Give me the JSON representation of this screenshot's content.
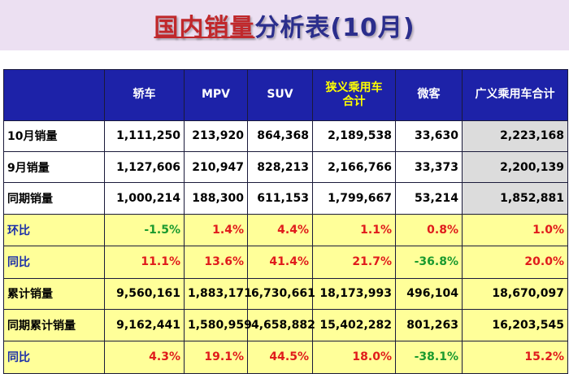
{
  "title": {
    "part1": "国内销量",
    "part2": "分析表(10月)"
  },
  "header": {
    "corner": "",
    "columns": [
      "轿车",
      "MPV",
      "SUV",
      "狭义乘用车合计",
      "微客",
      "广义乘用车合计"
    ]
  },
  "rows": [
    {
      "label": "10月销量",
      "values": [
        "1,111,250",
        "213,920",
        "864,368",
        "2,189,538",
        "33,630",
        "2,223,168"
      ]
    },
    {
      "label": "9月销量",
      "values": [
        "1,127,606",
        "210,947",
        "828,213",
        "2,166,766",
        "33,373",
        "2,200,139"
      ]
    },
    {
      "label": "同期销量",
      "values": [
        "1,000,214",
        "188,300",
        "611,153",
        "1,799,667",
        "53,214",
        "1,852,881"
      ]
    },
    {
      "label": "环比",
      "values": [
        "-1.5%",
        "1.4%",
        "4.4%",
        "1.1%",
        "0.8%",
        "1.0%"
      ]
    },
    {
      "label": "同比",
      "values": [
        "11.1%",
        "13.6%",
        "41.4%",
        "21.7%",
        "-36.8%",
        "20.0%"
      ]
    },
    {
      "label": "累计销量",
      "values": [
        "9,560,161",
        "1,883,171",
        "6,730,661",
        "18,173,993",
        "496,104",
        "18,670,097"
      ]
    },
    {
      "label": "同期累计销量",
      "values": [
        "9,162,441",
        "1,580,959",
        "4,658,882",
        "15,402,282",
        "801,263",
        "16,203,545"
      ]
    },
    {
      "label": "同比",
      "values": [
        "4.3%",
        "19.1%",
        "44.5%",
        "18.0%",
        "-38.1%",
        "15.2%"
      ]
    }
  ],
  "colors": {
    "header_bg": "#1d22a8",
    "header_highlight_text": "#ffff00",
    "yellow_row_bg": "#ffff99",
    "positive": "#e01b1b",
    "negative": "#1a9a2e",
    "title_red": "#c0282b",
    "title_blue": "#2b2e8c"
  }
}
